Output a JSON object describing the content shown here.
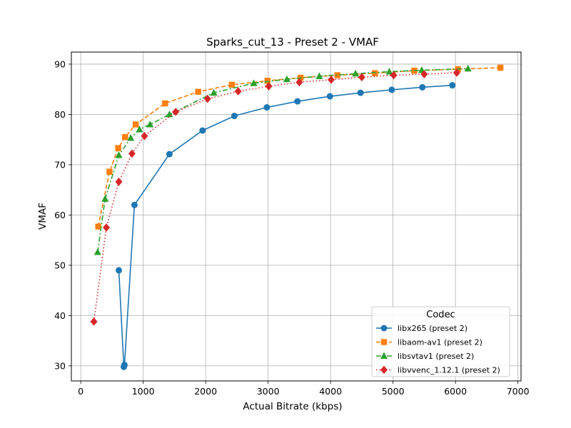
{
  "chart_data": {
    "type": "line",
    "title": "Sparks_cut_13 - Preset 2 - VMAF",
    "xlabel": "Actual Bitrate (kbps)",
    "ylabel": "VMAF",
    "xlim": [
      -150,
      7050
    ],
    "ylim": [
      27,
      92.4
    ],
    "xticks": [
      0,
      1000,
      2000,
      3000,
      4000,
      5000,
      6000,
      7000
    ],
    "yticks": [
      30,
      40,
      50,
      60,
      70,
      80,
      90
    ],
    "grid": true,
    "legend": {
      "title": "Codec",
      "location": "lower-right"
    },
    "series": [
      {
        "name": "libx265 (preset 2)",
        "color": "#1f77b4",
        "marker": "circle",
        "linestyle": "solid",
        "x": [
          610,
          690,
          700,
          860,
          1420,
          1950,
          2460,
          2980,
          3470,
          3990,
          4480,
          4980,
          5470,
          5950
        ],
        "y": [
          49.0,
          29.8,
          30.2,
          62.0,
          72.1,
          76.8,
          79.7,
          81.4,
          82.6,
          83.6,
          84.3,
          84.9,
          85.4,
          85.8
        ]
      },
      {
        "name": "libaom-av1 (preset 2)",
        "color": "#ff7f0e",
        "marker": "square",
        "linestyle": "dashed",
        "x": [
          280,
          460,
          600,
          710,
          880,
          1350,
          1880,
          2420,
          2990,
          3520,
          4110,
          4710,
          5340,
          6040,
          6720
        ],
        "y": [
          57.7,
          68.6,
          73.3,
          75.5,
          78.0,
          82.2,
          84.5,
          85.9,
          86.7,
          87.3,
          87.8,
          88.2,
          88.7,
          89.0,
          89.3
        ]
      },
      {
        "name": "libsvtav1 (preset 2)",
        "color": "#2ca02c",
        "marker": "triangle",
        "linestyle": "dashdot",
        "x": [
          270,
          390,
          610,
          800,
          940,
          1110,
          1420,
          2130,
          2770,
          3300,
          3820,
          4400,
          4940,
          5460,
          6200
        ],
        "y": [
          52.6,
          63.2,
          71.9,
          75.3,
          77.0,
          78.0,
          80.0,
          84.3,
          86.2,
          87.0,
          87.6,
          88.1,
          88.5,
          88.8,
          89.1
        ]
      },
      {
        "name": "libvvenc_1.12.1 (preset 2)",
        "color": "#d62728",
        "marker": "diamond",
        "linestyle": "dotted",
        "x": [
          210,
          410,
          610,
          820,
          1020,
          1520,
          2030,
          2520,
          3010,
          3500,
          4010,
          4500,
          5010,
          5500,
          6020
        ],
        "y": [
          38.8,
          57.5,
          66.6,
          72.2,
          75.7,
          80.5,
          83.1,
          84.6,
          85.6,
          86.4,
          86.9,
          87.4,
          87.8,
          88.0,
          88.3
        ]
      }
    ]
  }
}
